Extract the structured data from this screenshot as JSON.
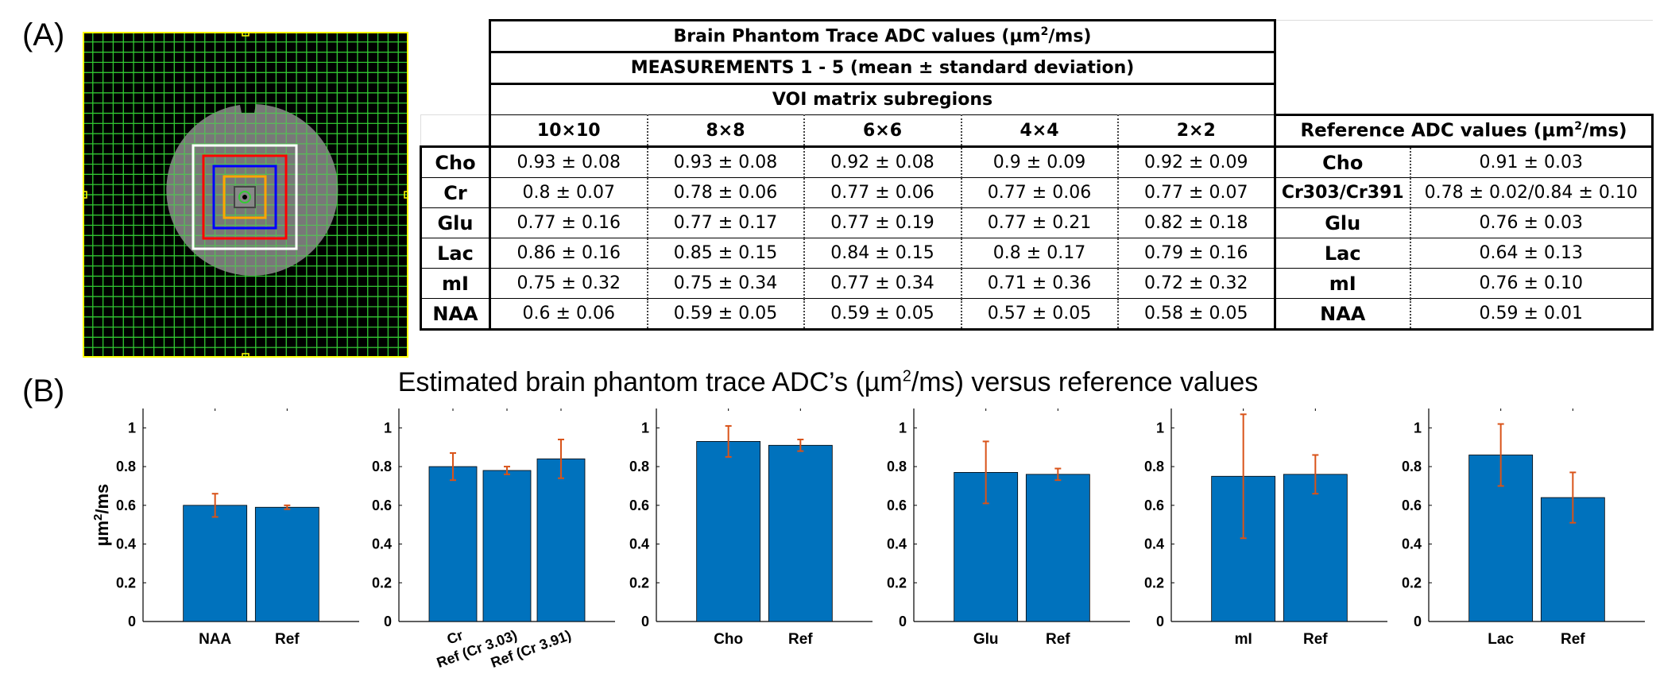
{
  "panel_a_label": "(A)",
  "panel_b_label": "(B)",
  "table": {
    "title": "Brain Phantom Trace ADC values (µm",
    "title_sup": "2",
    "title_end": "/ms)",
    "subtitle": "MEASUREMENTS 1 - 5 (mean ± standard deviation)",
    "group_header": "VOI matrix subregions",
    "columns": [
      "10×10",
      "8×8",
      "6×6",
      "4×4",
      "2×2"
    ],
    "ref_header": "Reference ADC values (µm",
    "ref_header_sup": "2",
    "ref_header_end": "/ms)",
    "rows": [
      {
        "label": "Cho",
        "values": [
          "0.93 ± 0.08",
          "0.93 ± 0.08",
          "0.92 ± 0.08",
          "0.9 ± 0.09",
          "0.92 ± 0.09"
        ],
        "ref_label": "Cho",
        "ref_value": "0.91 ± 0.03"
      },
      {
        "label": "Cr",
        "values": [
          "0.8 ± 0.07",
          "0.78 ± 0.06",
          "0.77 ± 0.06",
          "0.77 ± 0.06",
          "0.77 ± 0.07"
        ],
        "ref_label": "Cr303/Cr391",
        "ref_value": "0.78 ± 0.02/0.84 ± 0.10"
      },
      {
        "label": "Glu",
        "values": [
          "0.77 ± 0.16",
          "0.77 ± 0.17",
          "0.77 ± 0.19",
          "0.77 ± 0.21",
          "0.82 ± 0.18"
        ],
        "ref_label": "Glu",
        "ref_value": "0.76 ± 0.03"
      },
      {
        "label": "Lac",
        "values": [
          "0.86 ± 0.16",
          "0.85 ± 0.15",
          "0.84 ± 0.15",
          "0.8 ± 0.17",
          "0.79 ± 0.16"
        ],
        "ref_label": "Lac",
        "ref_value": "0.64 ± 0.13"
      },
      {
        "label": "mI",
        "values": [
          "0.75 ± 0.32",
          "0.75 ± 0.34",
          "0.77 ± 0.34",
          "0.71 ± 0.36",
          "0.72 ± 0.32"
        ],
        "ref_label": "mI",
        "ref_value": "0.76 ± 0.10"
      },
      {
        "label": "NAA",
        "values": [
          "0.6 ± 0.06",
          "0.59 ± 0.05",
          "0.59 ± 0.05",
          "0.57 ± 0.05",
          "0.58 ± 0.05"
        ],
        "ref_label": "NAA",
        "ref_value": "0.59 ± 0.01"
      }
    ]
  },
  "chart_title": "Estimated brain phantom trace ADC’s (µm",
  "chart_title_sup": "2",
  "chart_title_end": "/ms) versus reference values",
  "colors": {
    "bar": "#0072bd",
    "error": "#d95319",
    "grid_bg": "#000000",
    "grid_line": "#33cc33",
    "voi_white": "#ffffff",
    "voi_red": "#ff0000",
    "voi_blue": "#0000ff",
    "voi_orange": "#ffa500",
    "frame": "#ffff00"
  },
  "chart_data": {
    "type": "bar",
    "ylabel": "µm",
    "ylabel_sup": "2",
    "ylabel_end": "/ms",
    "ylim": [
      0,
      1.1
    ],
    "yticks": [
      0,
      0.2,
      0.4,
      0.6,
      0.8,
      1
    ],
    "ytick_labels": [
      "0",
      "0.2",
      "0.4",
      "0.6",
      "0.8",
      "1"
    ],
    "subplots": [
      {
        "categories": [
          "NAA",
          "Ref"
        ],
        "values": [
          0.6,
          0.59
        ],
        "errors": [
          0.06,
          0.01
        ],
        "rotate_labels": false
      },
      {
        "categories": [
          "Cr",
          "Ref (Cr 3.03)",
          "Ref (Cr 3.91)"
        ],
        "values": [
          0.8,
          0.78,
          0.84
        ],
        "errors": [
          0.07,
          0.02,
          0.1
        ],
        "rotate_labels": true
      },
      {
        "categories": [
          "Cho",
          "Ref"
        ],
        "values": [
          0.93,
          0.91
        ],
        "errors": [
          0.08,
          0.03
        ],
        "rotate_labels": false
      },
      {
        "categories": [
          "Glu",
          "Ref"
        ],
        "values": [
          0.77,
          0.76
        ],
        "errors": [
          0.16,
          0.03
        ],
        "rotate_labels": false
      },
      {
        "categories": [
          "mI",
          "Ref"
        ],
        "values": [
          0.75,
          0.76
        ],
        "errors": [
          0.32,
          0.1
        ],
        "rotate_labels": false
      },
      {
        "categories": [
          "Lac",
          "Ref"
        ],
        "values": [
          0.86,
          0.64
        ],
        "errors": [
          0.16,
          0.13
        ],
        "rotate_labels": false
      }
    ]
  }
}
